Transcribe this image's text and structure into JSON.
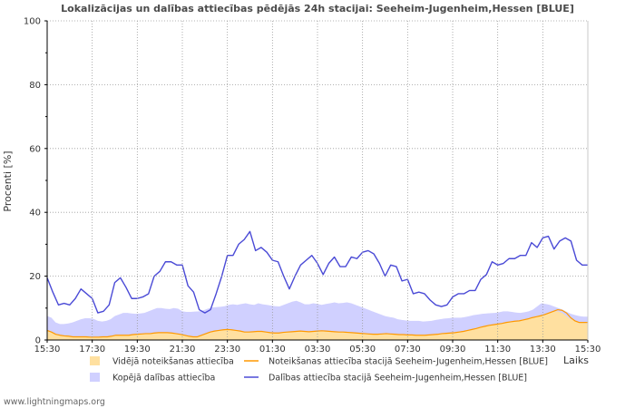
{
  "chart_data": {
    "type": "line",
    "title": "Lokalizācijas un dalības attiecības pēdējās 24h stacijai: Seeheim-Jugenheim,Hessen [BLUE]",
    "ylabel": "Procenti   [%]",
    "xlabel": "Laiks",
    "ylim": [
      0,
      100
    ],
    "y_ticks": [
      0,
      20,
      40,
      60,
      80,
      100
    ],
    "x_tick_labels": [
      "15:30",
      "17:30",
      "19:30",
      "21:30",
      "23:30",
      "01:30",
      "03:30",
      "05:30",
      "07:30",
      "09:30",
      "11:30",
      "13:30",
      "15:30"
    ],
    "x_range_hours": [
      0,
      24
    ],
    "x_step_hours": 0.25,
    "series": [
      {
        "name": "Kopējā dalības attiecība",
        "style": "area",
        "color": "#d0d0ff",
        "values": [
          7.5,
          7,
          5.5,
          5,
          5,
          5.2,
          5.5,
          6,
          6.5,
          6.8,
          6.8,
          6.6,
          6,
          5.8,
          6,
          6.5,
          7.5,
          8,
          8.5,
          8.5,
          8.3,
          8.2,
          8.3,
          8.5,
          9,
          9.5,
          10,
          10,
          9.8,
          9.7,
          10,
          9.8,
          9,
          8.8,
          8.8,
          8.9,
          9,
          9.3,
          9.8,
          10.2,
          10.3,
          10.4,
          10.6,
          11,
          11.2,
          11,
          11.3,
          11.5,
          11.2,
          11,
          11.5,
          11.2,
          11,
          10.8,
          10.6,
          10.5,
          11,
          11.5,
          12,
          12.3,
          11.8,
          11.2,
          11.2,
          11.5,
          11.3,
          11,
          11.3,
          11.5,
          11.8,
          11.5,
          11.6,
          11.8,
          11.5,
          11,
          10.5,
          10,
          9.5,
          9,
          8.5,
          8,
          7.5,
          7.2,
          7,
          6.5,
          6.3,
          6.1,
          6,
          6,
          6,
          5.8,
          5.9,
          6,
          6.3,
          6.5,
          6.7,
          6.8,
          7,
          7,
          7,
          7.2,
          7.5,
          7.8,
          8,
          8.2,
          8.3,
          8.4,
          8.5,
          8.7,
          9,
          9,
          8.8,
          8.6,
          8.5,
          8.7,
          9,
          9.5,
          10.5,
          11.5,
          11.3,
          11,
          10.5,
          10,
          9.5,
          8.8,
          8.2,
          7.8,
          7.5,
          7.3,
          7.3
        ]
      },
      {
        "name": "Vidējā noteikšanas attiecība",
        "style": "area",
        "color": "#ffe0a0",
        "values": [
          3,
          2.5,
          1.8,
          1.5,
          1.3,
          1.2,
          1,
          1,
          1,
          1,
          0.9,
          0.9,
          0.9,
          1,
          1,
          1.2,
          1.5,
          1.5,
          1.5,
          1.5,
          1.7,
          1.8,
          1.9,
          2,
          2,
          2.2,
          2.3,
          2.3,
          2.3,
          2.2,
          2,
          1.8,
          1.5,
          1.2,
          1,
          1,
          1.5,
          2,
          2.5,
          2.8,
          3,
          3.2,
          3.3,
          3.2,
          3,
          2.8,
          2.5,
          2.5,
          2.6,
          2.7,
          2.7,
          2.5,
          2.3,
          2.2,
          2.2,
          2.4,
          2.5,
          2.6,
          2.7,
          2.8,
          2.7,
          2.6,
          2.7,
          2.8,
          2.9,
          2.8,
          2.7,
          2.6,
          2.5,
          2.5,
          2.4,
          2.3,
          2.2,
          2.1,
          2,
          1.9,
          1.8,
          1.8,
          1.9,
          2,
          1.9,
          1.8,
          1.7,
          1.7,
          1.6,
          1.6,
          1.5,
          1.5,
          1.5,
          1.6,
          1.7,
          1.8,
          2,
          2.1,
          2.2,
          2.3,
          2.5,
          2.7,
          3,
          3.3,
          3.6,
          4,
          4.3,
          4.6,
          4.8,
          5,
          5.2,
          5.5,
          5.7,
          5.9,
          6,
          6.3,
          6.6,
          7,
          7.3,
          7.6,
          8,
          8.5,
          9,
          9,
          8.5,
          7.5,
          6.5,
          6,
          5.5,
          5.3,
          5.2
        ]
      },
      {
        "name": "Noteikšanas attiecība stacijā Seeheim-Jugenheim,Hessen [BLUE]",
        "style": "line",
        "color": "#ff9900",
        "values": [
          3,
          2.5,
          1.8,
          1.5,
          1.3,
          1.2,
          1,
          1,
          1,
          1,
          0.9,
          0.9,
          0.9,
          1,
          1,
          1.2,
          1.5,
          1.5,
          1.5,
          1.5,
          1.7,
          1.8,
          1.9,
          2,
          2,
          2.2,
          2.3,
          2.3,
          2.3,
          2.2,
          2,
          1.8,
          1.5,
          1.2,
          1,
          1,
          1.5,
          2,
          2.5,
          2.8,
          3,
          3.2,
          3.3,
          3.2,
          3,
          2.8,
          2.5,
          2.5,
          2.6,
          2.7,
          2.7,
          2.5,
          2.3,
          2.2,
          2.2,
          2.4,
          2.5,
          2.6,
          2.7,
          2.8,
          2.7,
          2.6,
          2.7,
          2.8,
          2.9,
          2.8,
          2.7,
          2.6,
          2.5,
          2.5,
          2.4,
          2.3,
          2.2,
          2.1,
          2,
          1.9,
          1.8,
          1.8,
          1.9,
          2,
          1.9,
          1.8,
          1.7,
          1.7,
          1.6,
          1.6,
          1.5,
          1.5,
          1.5,
          1.6,
          1.7,
          1.8,
          2,
          2.1,
          2.2,
          2.3,
          2.5,
          2.7,
          3,
          3.3,
          3.6,
          4,
          4.3,
          4.6,
          4.8,
          5,
          5.2,
          5.5,
          5.7,
          5.9,
          6,
          6.3,
          6.6,
          7,
          7.3,
          7.6,
          8,
          8.5,
          9,
          9.5,
          9.3,
          8.5,
          7,
          6,
          5.5,
          5.5,
          5.5
        ]
      },
      {
        "name": "Dalības attiecība stacijā Seeheim-Jugenheim,Hessen [BLUE]",
        "style": "line",
        "color": "#4a4ad6",
        "values": [
          19.5,
          15,
          11,
          11.5,
          11,
          13,
          16,
          14.5,
          13,
          8.5,
          9,
          11,
          18,
          19.5,
          16.5,
          13,
          13,
          13.5,
          14.5,
          20,
          21.5,
          24.5,
          24.5,
          23.5,
          23.5,
          17,
          15,
          9.5,
          8.5,
          9.5,
          14.5,
          20,
          26.5,
          26.5,
          30,
          31.5,
          34,
          28,
          29,
          27.5,
          25,
          24.5,
          20,
          16,
          20,
          23.5,
          25,
          26.5,
          24,
          20.5,
          24,
          26,
          23,
          23,
          26,
          25.5,
          27.5,
          28,
          27,
          24,
          20,
          23.5,
          23,
          18.5,
          19,
          14.5,
          15,
          14.5,
          12.5,
          11,
          10.5,
          11,
          13.5,
          14.5,
          14.5,
          15.5,
          15.5,
          19,
          20.5,
          24.5,
          23.5,
          24,
          25.5,
          25.5,
          26.5,
          26.5,
          30.5,
          29,
          32,
          32.5,
          28.5,
          31,
          32,
          31,
          25,
          23.5,
          23.5
        ]
      }
    ],
    "legend": [
      {
        "label": "Vidējā noteikšanas attiecība",
        "kind": "swatch",
        "color": "#ffe0a0"
      },
      {
        "label": "Noteikšanas attiecība stacijā Seeheim-Jugenheim,Hessen [BLUE]",
        "kind": "line",
        "color": "#ff9900"
      },
      {
        "label": "Kopējā dalības attiecība",
        "kind": "swatch",
        "color": "#d0d0ff"
      },
      {
        "label": "Dalības attiecība stacijā Seeheim-Jugenheim,Hessen [BLUE]",
        "kind": "line",
        "color": "#4a4ad6"
      }
    ]
  },
  "footer": "www.lightningmaps.org"
}
